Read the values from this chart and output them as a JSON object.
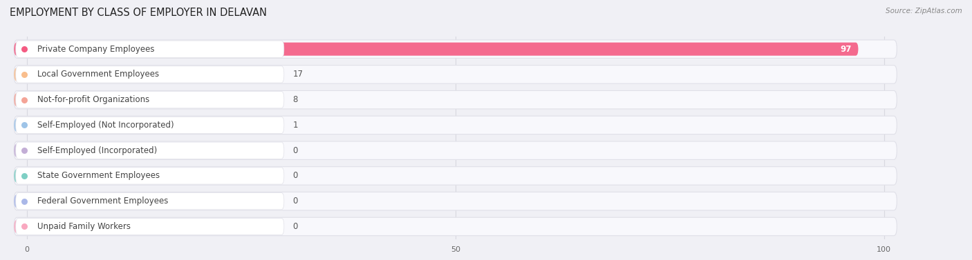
{
  "title": "EMPLOYMENT BY CLASS OF EMPLOYER IN DELAVAN",
  "source": "Source: ZipAtlas.com",
  "categories": [
    "Private Company Employees",
    "Local Government Employees",
    "Not-for-profit Organizations",
    "Self-Employed (Not Incorporated)",
    "Self-Employed (Incorporated)",
    "State Government Employees",
    "Federal Government Employees",
    "Unpaid Family Workers"
  ],
  "values": [
    97,
    17,
    8,
    1,
    0,
    0,
    0,
    0
  ],
  "bar_colors": [
    "#f45b82",
    "#f9be8d",
    "#f4a497",
    "#9ec4e8",
    "#c3aed6",
    "#7ecfc4",
    "#aab8e8",
    "#f9a8c0"
  ],
  "bg_color": "#f0f0f5",
  "row_bg_color": "#ffffff",
  "row_edge_color": "#e0e0e8",
  "xlim": [
    0,
    100
  ],
  "xticks": [
    0,
    50,
    100
  ],
  "title_fontsize": 10.5,
  "label_fontsize": 8.5,
  "value_fontsize": 8.5,
  "grid_color": "#d8d8e0"
}
